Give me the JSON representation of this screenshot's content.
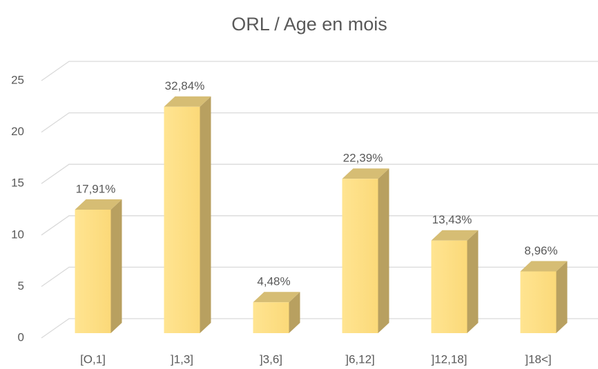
{
  "chart_data": {
    "type": "bar3d",
    "title": "ORL / Age en mois",
    "categories": [
      "[O,1]",
      "]1,3]",
      "]3,6]",
      "]6,12]",
      "]12,18]",
      "]18<]"
    ],
    "values": [
      12,
      22,
      3,
      15,
      9,
      6
    ],
    "data_labels": [
      "17,91%",
      "32,84%",
      "4,48%",
      "22,39%",
      "13,43%",
      "8,96%"
    ],
    "color": "#ffe08c",
    "ylim": [
      0,
      25
    ],
    "yticks": [
      0,
      5,
      10,
      15,
      20,
      25
    ],
    "grid": true
  }
}
